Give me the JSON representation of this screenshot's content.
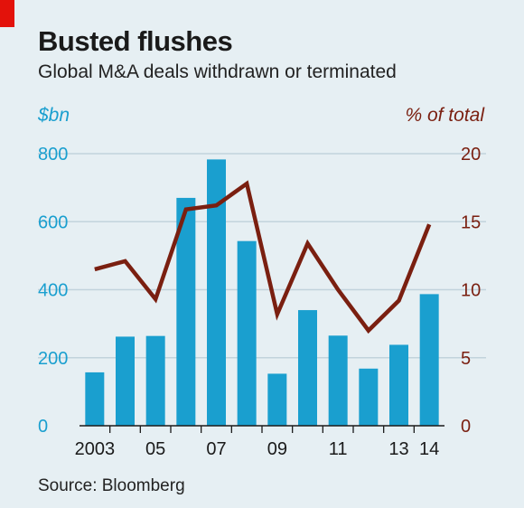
{
  "header": {
    "title": "Busted flushes",
    "subtitle": "Global M&A deals withdrawn or terminated"
  },
  "footer": {
    "source": "Source: Bloomberg"
  },
  "colors": {
    "bars": "#1a9fcf",
    "line": "#7a1f10",
    "grid": "#c2d3dc",
    "tag": "#e3120b",
    "background": "#e6eff3"
  },
  "chart_data": {
    "type": "bar",
    "categories": [
      "2003",
      "2004",
      "2005",
      "2006",
      "2007",
      "2008",
      "2009",
      "2010",
      "2011",
      "2012",
      "2013",
      "2014"
    ],
    "x_tick_labels": [
      "2003",
      "",
      "05",
      "",
      "07",
      "",
      "09",
      "",
      "11",
      "",
      "13",
      "14"
    ],
    "left_axis": {
      "unit": "$bn",
      "ylim": [
        0,
        800
      ],
      "ticks": [
        0,
        200,
        400,
        600,
        800
      ]
    },
    "right_axis": {
      "unit": "% of total",
      "ylim": [
        0,
        20
      ],
      "ticks": [
        0,
        5,
        10,
        15,
        20
      ]
    },
    "series": [
      {
        "type": "bar",
        "axis": "left",
        "values": [
          157,
          262,
          264,
          670,
          783,
          543,
          153,
          340,
          265,
          168,
          238,
          387
        ]
      },
      {
        "type": "line",
        "axis": "right",
        "values": [
          11.5,
          12.1,
          9.3,
          15.9,
          16.2,
          17.8,
          8.2,
          13.4,
          10.0,
          7.0,
          9.2,
          14.8
        ]
      }
    ],
    "grid": true
  }
}
